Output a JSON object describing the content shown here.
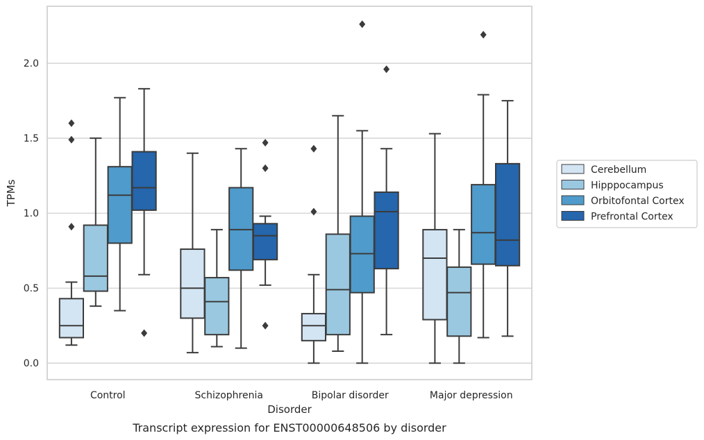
{
  "caption": "Transcript expression for ENST00000648506 by disorder",
  "colors": {
    "series": [
      "#d3e4f3",
      "#9ac8e0",
      "#4f9bcb",
      "#2566ac"
    ],
    "line": "#3b3b3b",
    "grid": "#cccccc",
    "frame": "#cccccc"
  },
  "chart_data": {
    "type": "box",
    "xlabel": "Disorder",
    "ylabel": "TPMs",
    "ylim": [
      -0.11,
      2.38
    ],
    "yticks": [
      {
        "v": 0.0,
        "label": "0.0"
      },
      {
        "v": 0.5,
        "label": "0.5"
      },
      {
        "v": 1.0,
        "label": "1.0"
      },
      {
        "v": 1.5,
        "label": "1.5"
      },
      {
        "v": 2.0,
        "label": "2.0"
      }
    ],
    "grid": "horizontal",
    "legend_position": "right",
    "categories": [
      "Control",
      "Schizophrenia",
      "Bipolar disorder",
      "Major depression"
    ],
    "series": [
      {
        "name": "Cerebellum",
        "boxes": [
          {
            "wl": 0.12,
            "q1": 0.17,
            "med": 0.25,
            "q3": 0.43,
            "wh": 0.54,
            "fliers": [
              0.91,
              1.49,
              1.6
            ]
          },
          {
            "wl": 0.07,
            "q1": 0.3,
            "med": 0.5,
            "q3": 0.76,
            "wh": 1.4,
            "fliers": []
          },
          {
            "wl": 0.0,
            "q1": 0.15,
            "med": 0.25,
            "q3": 0.33,
            "wh": 0.59,
            "fliers": [
              1.01,
              1.43
            ]
          },
          {
            "wl": 0.0,
            "q1": 0.29,
            "med": 0.7,
            "q3": 0.89,
            "wh": 1.53,
            "fliers": []
          }
        ]
      },
      {
        "name": "Hipppocampus",
        "boxes": [
          {
            "wl": 0.38,
            "q1": 0.48,
            "med": 0.58,
            "q3": 0.92,
            "wh": 1.5,
            "fliers": []
          },
          {
            "wl": 0.11,
            "q1": 0.19,
            "med": 0.41,
            "q3": 0.57,
            "wh": 0.89,
            "fliers": []
          },
          {
            "wl": 0.08,
            "q1": 0.19,
            "med": 0.49,
            "q3": 0.86,
            "wh": 1.65,
            "fliers": []
          },
          {
            "wl": 0.0,
            "q1": 0.18,
            "med": 0.47,
            "q3": 0.64,
            "wh": 0.89,
            "fliers": []
          }
        ]
      },
      {
        "name": "Orbitofontal Cortex",
        "boxes": [
          {
            "wl": 0.35,
            "q1": 0.8,
            "med": 1.12,
            "q3": 1.31,
            "wh": 1.77,
            "fliers": []
          },
          {
            "wl": 0.1,
            "q1": 0.62,
            "med": 0.89,
            "q3": 1.17,
            "wh": 1.43,
            "fliers": []
          },
          {
            "wl": 0.0,
            "q1": 0.47,
            "med": 0.73,
            "q3": 0.98,
            "wh": 1.55,
            "fliers": [
              2.26
            ]
          },
          {
            "wl": 0.17,
            "q1": 0.66,
            "med": 0.87,
            "q3": 1.19,
            "wh": 1.79,
            "fliers": [
              2.19
            ]
          }
        ]
      },
      {
        "name": "Prefrontal Cortex",
        "boxes": [
          {
            "wl": 0.59,
            "q1": 1.02,
            "med": 1.17,
            "q3": 1.41,
            "wh": 1.83,
            "fliers": [
              0.2
            ]
          },
          {
            "wl": 0.52,
            "q1": 0.69,
            "med": 0.85,
            "q3": 0.93,
            "wh": 0.98,
            "fliers": [
              0.25,
              1.3,
              1.47
            ]
          },
          {
            "wl": 0.19,
            "q1": 0.63,
            "med": 1.01,
            "q3": 1.14,
            "wh": 1.43,
            "fliers": [
              1.96
            ]
          },
          {
            "wl": 0.18,
            "q1": 0.65,
            "med": 0.82,
            "q3": 1.33,
            "wh": 1.75,
            "fliers": []
          }
        ]
      }
    ]
  }
}
